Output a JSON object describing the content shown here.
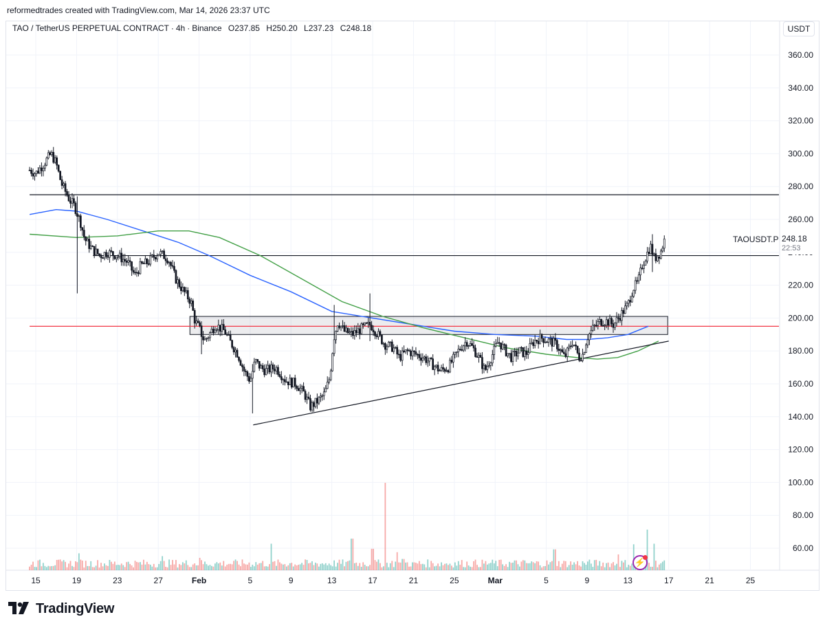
{
  "header": {
    "attribution": "reformedtrades created with TradingView.com, Mar 14, 2026 23:37 UTC"
  },
  "legend": {
    "symbol": "TAO / TetherUS PERPETUAL CONTRACT",
    "interval": "4h",
    "exchange": "Binance",
    "open_label": "O",
    "open": "237.85",
    "high_label": "H",
    "high": "250.20",
    "low_label": "L",
    "low": "237.23",
    "close_label": "C",
    "close": "248.18"
  },
  "price_axis": {
    "currency": "USDT",
    "ticks": [
      "360.00",
      "340.00",
      "320.00",
      "300.00",
      "280.00",
      "260.00",
      "240.00",
      "220.00",
      "200.00",
      "180.00",
      "160.00",
      "140.00",
      "120.00",
      "100.00",
      "80.00",
      "60.00"
    ]
  },
  "last_price": {
    "symbol": "TAOUSDT.P",
    "value": "248.18",
    "countdown": "22:53"
  },
  "footer": {
    "brand": "TradingView"
  },
  "colors": {
    "up": "#26a69a",
    "down": "#ef5350",
    "candle": "#131722",
    "ma_blue": "#2962ff",
    "ma_green": "#43a047",
    "red_line": "#f23645",
    "grid": "#f0f3fa",
    "vol_up": "#26a69a",
    "vol_down": "#ef5350"
  },
  "chart_data": {
    "type": "candlestick",
    "ylim": [
      50,
      370
    ],
    "x_ticks": [
      "15",
      "19",
      "23",
      "27",
      "Feb",
      "5",
      "9",
      "13",
      "17",
      "21",
      "25",
      "Mar",
      "5",
      "9",
      "13",
      "17",
      "21",
      "25"
    ],
    "x_tick_days": [
      0,
      4,
      8,
      12,
      16,
      21,
      25,
      29,
      33,
      37,
      41,
      45,
      50,
      54,
      58,
      62,
      66,
      70
    ],
    "close_path": [
      [
        -0.6,
        290
      ],
      [
        0,
        288
      ],
      [
        0.8,
        294
      ],
      [
        1.5,
        300
      ],
      [
        2,
        294
      ],
      [
        2.5,
        282
      ],
      [
        3.3,
        272
      ],
      [
        3.8,
        268
      ],
      [
        4.4,
        258
      ],
      [
        4.8,
        248
      ],
      [
        5.5,
        242
      ],
      [
        6.3,
        238
      ],
      [
        7,
        240
      ],
      [
        8,
        238
      ],
      [
        9,
        234
      ],
      [
        9.7,
        226
      ],
      [
        10.3,
        232
      ],
      [
        11,
        234
      ],
      [
        12,
        240
      ],
      [
        13,
        236
      ],
      [
        13.7,
        224
      ],
      [
        14.5,
        216
      ],
      [
        15.2,
        210
      ],
      [
        15.6,
        198
      ],
      [
        16,
        194
      ],
      [
        16.5,
        186
      ],
      [
        17,
        190
      ],
      [
        17.6,
        196
      ],
      [
        18.5,
        192
      ],
      [
        19,
        186
      ],
      [
        19.8,
        178
      ],
      [
        20.4,
        168
      ],
      [
        21,
        162
      ],
      [
        21.5,
        174
      ],
      [
        22,
        170
      ],
      [
        22.5,
        168
      ],
      [
        23.5,
        170
      ],
      [
        24.5,
        162
      ],
      [
        25.5,
        160
      ],
      [
        26.3,
        154
      ],
      [
        26.9,
        146
      ],
      [
        27.7,
        150
      ],
      [
        28.3,
        154
      ],
      [
        28.8,
        164
      ],
      [
        29.2,
        188
      ],
      [
        29.6,
        198
      ],
      [
        30.2,
        192
      ],
      [
        31,
        190
      ],
      [
        32,
        194
      ],
      [
        32.8,
        196
      ],
      [
        33.5,
        190
      ],
      [
        34.2,
        184
      ],
      [
        35,
        182
      ],
      [
        35.6,
        176
      ],
      [
        36.4,
        180
      ],
      [
        37.2,
        178
      ],
      [
        38,
        176
      ],
      [
        38.8,
        172
      ],
      [
        39.6,
        168
      ],
      [
        40.4,
        170
      ],
      [
        41,
        176
      ],
      [
        41.6,
        182
      ],
      [
        42.2,
        186
      ],
      [
        42.8,
        182
      ],
      [
        43.4,
        176
      ],
      [
        44,
        168
      ],
      [
        44.6,
        176
      ],
      [
        45.3,
        186
      ],
      [
        46,
        180
      ],
      [
        46.6,
        176
      ],
      [
        47.4,
        180
      ],
      [
        48,
        178
      ],
      [
        48.8,
        186
      ],
      [
        49.5,
        188
      ],
      [
        50.3,
        186
      ],
      [
        51,
        184
      ],
      [
        51.8,
        176
      ],
      [
        52.6,
        186
      ],
      [
        53.2,
        176
      ],
      [
        53.6,
        178
      ],
      [
        54,
        188
      ],
      [
        54.6,
        194
      ],
      [
        55.3,
        198
      ],
      [
        56,
        198
      ],
      [
        56.6,
        196
      ],
      [
        57.3,
        202
      ],
      [
        58,
        208
      ],
      [
        58.5,
        218
      ],
      [
        59,
        222
      ],
      [
        59.4,
        232
      ],
      [
        59.8,
        238
      ],
      [
        60.2,
        244
      ],
      [
        60.6,
        236
      ],
      [
        61.2,
        240
      ],
      [
        61.6,
        248
      ]
    ],
    "wick_extremes": [
      {
        "day": 4.1,
        "low": 215,
        "high": 274
      },
      {
        "day": 16.2,
        "low": 178,
        "high": 198
      },
      {
        "day": 21.2,
        "low": 142,
        "high": 172
      },
      {
        "day": 29.3,
        "low": 186,
        "high": 208
      },
      {
        "day": 32.8,
        "low": 186,
        "high": 215
      },
      {
        "day": 60.4,
        "low": 228,
        "high": 251
      }
    ],
    "series": [
      {
        "color": "#2962ff",
        "points": [
          [
            -0.6,
            263
          ],
          [
            2,
            266
          ],
          [
            4,
            265
          ],
          [
            7,
            260
          ],
          [
            11,
            252
          ],
          [
            14,
            246
          ],
          [
            17,
            238
          ],
          [
            21,
            226
          ],
          [
            25,
            216
          ],
          [
            29,
            204
          ],
          [
            33,
            200
          ],
          [
            37,
            196
          ],
          [
            41,
            192
          ],
          [
            45,
            190
          ],
          [
            49,
            189
          ],
          [
            52,
            187
          ],
          [
            54,
            187
          ],
          [
            56,
            188
          ],
          [
            58,
            190
          ],
          [
            60,
            195
          ]
        ]
      },
      {
        "color": "#43a047",
        "points": [
          [
            -0.6,
            251
          ],
          [
            4,
            249
          ],
          [
            8,
            250
          ],
          [
            12,
            253
          ],
          [
            15,
            253
          ],
          [
            18,
            249
          ],
          [
            22,
            238
          ],
          [
            26,
            224
          ],
          [
            30,
            210
          ],
          [
            34,
            201
          ],
          [
            38,
            194
          ],
          [
            42,
            188
          ],
          [
            46,
            182
          ],
          [
            50,
            178
          ],
          [
            53,
            176
          ],
          [
            55,
            175
          ],
          [
            57,
            176
          ],
          [
            59,
            180
          ],
          [
            61,
            186
          ]
        ]
      }
    ],
    "horizontal_lines": [
      {
        "price": 275,
        "from_day": -0.6,
        "to_day": 73.5,
        "color": "#131722"
      },
      {
        "price": 238,
        "from_day": 5.6,
        "to_day": 73.5,
        "color": "#131722"
      },
      {
        "price": 195,
        "from_day": -0.6,
        "to_day": 73.5,
        "color": "#f23645"
      }
    ],
    "trendlines": [
      {
        "from": [
          21.3,
          135
        ],
        "to": [
          62,
          186
        ]
      }
    ],
    "zone": {
      "price_top": 201,
      "price_bottom": 190,
      "from_day": 15.1,
      "to_day": 61.9
    },
    "volume_spikes": [
      [
        4.2,
        30
      ],
      [
        12.4,
        25
      ],
      [
        16,
        22
      ],
      [
        23.1,
        47
      ],
      [
        31,
        56
      ],
      [
        33,
        38
      ],
      [
        34.2,
        155
      ],
      [
        35.4,
        32
      ],
      [
        36,
        20
      ],
      [
        37,
        14
      ],
      [
        50.8,
        37
      ],
      [
        57,
        28
      ],
      [
        58.5,
        46
      ],
      [
        59.9,
        72
      ],
      [
        60.5,
        47
      ]
    ],
    "volume_baseline": 12
  }
}
